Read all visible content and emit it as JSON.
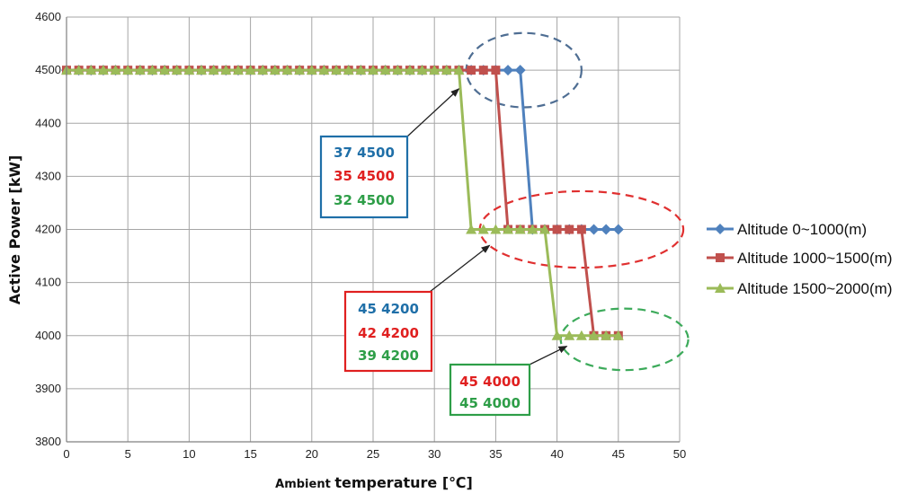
{
  "chart_data": {
    "type": "line",
    "xlabel_prefix": "Ambient ",
    "xlabel_main": "temperature [",
    "xlabel_unit": "℃",
    "xlabel_suffix": "]",
    "ylabel": "Active Power [kW]",
    "xlim": [
      0,
      50
    ],
    "ylim": [
      3800,
      4600
    ],
    "xticks": [
      "0",
      "5",
      "10",
      "15",
      "20",
      "25",
      "30",
      "35",
      "40",
      "45",
      "50"
    ],
    "yticks": [
      "3800",
      "3900",
      "4000",
      "4100",
      "4200",
      "4300",
      "4400",
      "4500",
      "4600"
    ],
    "grid": true,
    "legend_position": "right",
    "series": [
      {
        "name": "Altitude 0~1000(m)",
        "color": "#4F81BD",
        "marker": "diamond",
        "x": [
          0,
          1,
          2,
          3,
          4,
          5,
          6,
          7,
          8,
          9,
          10,
          11,
          12,
          13,
          14,
          15,
          16,
          17,
          18,
          19,
          20,
          21,
          22,
          23,
          24,
          25,
          26,
          27,
          28,
          29,
          30,
          31,
          32,
          33,
          34,
          35,
          36,
          37,
          38,
          39,
          40,
          41,
          42,
          43,
          44,
          45
        ],
        "y": [
          4500,
          4500,
          4500,
          4500,
          4500,
          4500,
          4500,
          4500,
          4500,
          4500,
          4500,
          4500,
          4500,
          4500,
          4500,
          4500,
          4500,
          4500,
          4500,
          4500,
          4500,
          4500,
          4500,
          4500,
          4500,
          4500,
          4500,
          4500,
          4500,
          4500,
          4500,
          4500,
          4500,
          4500,
          4500,
          4500,
          4500,
          4500,
          4200,
          4200,
          4200,
          4200,
          4200,
          4200,
          4200,
          4200
        ]
      },
      {
        "name": "Altitude 1000~1500(m)",
        "color": "#C0504D",
        "marker": "square",
        "x": [
          0,
          1,
          2,
          3,
          4,
          5,
          6,
          7,
          8,
          9,
          10,
          11,
          12,
          13,
          14,
          15,
          16,
          17,
          18,
          19,
          20,
          21,
          22,
          23,
          24,
          25,
          26,
          27,
          28,
          29,
          30,
          31,
          32,
          33,
          34,
          35,
          36,
          37,
          38,
          39,
          40,
          41,
          42,
          43,
          44,
          45
        ],
        "y": [
          4500,
          4500,
          4500,
          4500,
          4500,
          4500,
          4500,
          4500,
          4500,
          4500,
          4500,
          4500,
          4500,
          4500,
          4500,
          4500,
          4500,
          4500,
          4500,
          4500,
          4500,
          4500,
          4500,
          4500,
          4500,
          4500,
          4500,
          4500,
          4500,
          4500,
          4500,
          4500,
          4500,
          4500,
          4500,
          4500,
          4200,
          4200,
          4200,
          4200,
          4200,
          4200,
          4200,
          4000,
          4000,
          4000
        ]
      },
      {
        "name": "Altitude 1500~2000(m)",
        "color": "#9BBB59",
        "marker": "triangle",
        "x": [
          0,
          1,
          2,
          3,
          4,
          5,
          6,
          7,
          8,
          9,
          10,
          11,
          12,
          13,
          14,
          15,
          16,
          17,
          18,
          19,
          20,
          21,
          22,
          23,
          24,
          25,
          26,
          27,
          28,
          29,
          30,
          31,
          32,
          33,
          34,
          35,
          36,
          37,
          38,
          39,
          40,
          41,
          42,
          43,
          44,
          45
        ],
        "y": [
          4500,
          4500,
          4500,
          4500,
          4500,
          4500,
          4500,
          4500,
          4500,
          4500,
          4500,
          4500,
          4500,
          4500,
          4500,
          4500,
          4500,
          4500,
          4500,
          4500,
          4500,
          4500,
          4500,
          4500,
          4500,
          4500,
          4500,
          4500,
          4500,
          4500,
          4500,
          4500,
          4500,
          4200,
          4200,
          4200,
          4200,
          4200,
          4200,
          4200,
          4000,
          4000,
          4000,
          4000,
          4000,
          4000
        ]
      }
    ],
    "annotations": [
      {
        "border_color": "#1F6FA8",
        "lines": [
          {
            "text": "37 4500",
            "color": "#1F6FA8"
          },
          {
            "text": "35 4500",
            "color": "#E02020"
          },
          {
            "text": "32 4500",
            "color": "#2E9E48"
          }
        ],
        "arrow_target": [
          32,
          4465
        ]
      },
      {
        "border_color": "#E02020",
        "lines": [
          {
            "text": "45 4200",
            "color": "#1F6FA8"
          },
          {
            "text": "42 4200",
            "color": "#E02020"
          },
          {
            "text": "39 4200",
            "color": "#2E9E48"
          }
        ],
        "arrow_target": [
          34.5,
          4170
        ]
      },
      {
        "border_color": "#2E9E48",
        "lines": [
          {
            "text": "45 4000",
            "color": "#E02020"
          },
          {
            "text": "45 4000",
            "color": "#2E9E48"
          }
        ],
        "arrow_target": [
          40.8,
          3980
        ]
      }
    ],
    "ellipses": [
      {
        "cx": 37.3,
        "cy": 4500,
        "rx": 4.7,
        "ry": 70,
        "color": "#4F6E93"
      },
      {
        "cx": 42,
        "cy": 4200,
        "rx": 8.3,
        "ry": 72,
        "color": "#E03030"
      },
      {
        "cx": 45.5,
        "cy": 3993,
        "rx": 5.2,
        "ry": 58,
        "color": "#3CAA5A"
      }
    ]
  }
}
